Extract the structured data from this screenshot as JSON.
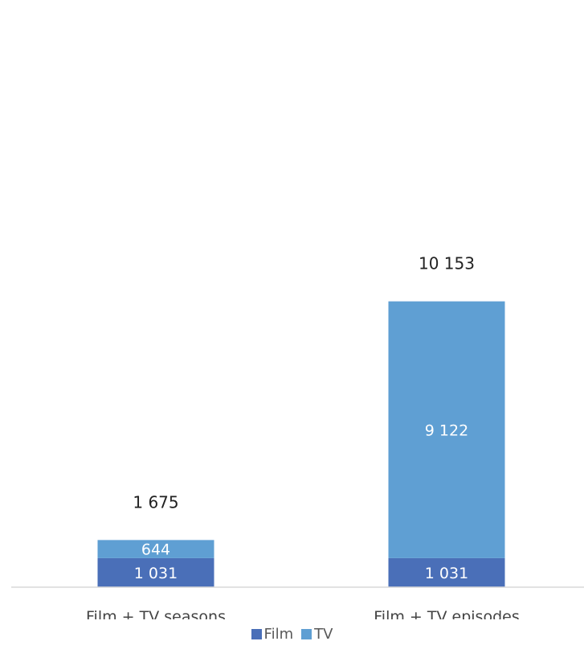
{
  "chart_data": {
    "type": "bar",
    "stacked": true,
    "categories": [
      "Film + TV seasons",
      "Film + TV episodes"
    ],
    "series": [
      {
        "name": "Film",
        "values": [
          1031,
          1031
        ],
        "labels": [
          "1 031",
          "1 031"
        ],
        "color": "#4a6fb8"
      },
      {
        "name": "TV",
        "values": [
          644,
          9122
        ],
        "labels": [
          "644",
          "9 122"
        ],
        "color": "#5f9fd3"
      }
    ],
    "totals": [
      1675,
      10153
    ],
    "total_labels": [
      "1 675",
      "10 153"
    ],
    "title": "",
    "xlabel": "",
    "ylabel": "",
    "ylim": [
      0,
      18000
    ],
    "grid": false,
    "legend_position": "bottom"
  }
}
